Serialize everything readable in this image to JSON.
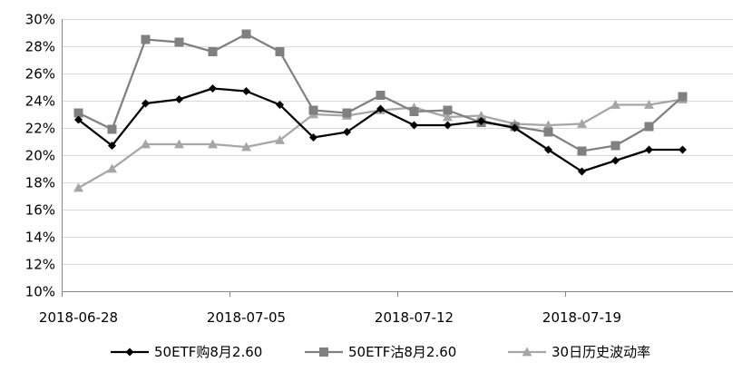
{
  "chart_data": {
    "type": "line",
    "title": "",
    "xlabel": "",
    "ylabel": "",
    "ylim": [
      0.1,
      0.3
    ],
    "yticks": [
      0.1,
      0.12,
      0.14,
      0.16,
      0.18,
      0.2,
      0.22,
      0.24,
      0.26,
      0.28,
      0.3
    ],
    "ytick_labels": [
      "10%",
      "12%",
      "14%",
      "16%",
      "18%",
      "20%",
      "22%",
      "24%",
      "26%",
      "28%",
      "30%"
    ],
    "xtick_labels": [
      "2018-06-28",
      "2018-07-05",
      "2018-07-12",
      "2018-07-19"
    ],
    "xtick_indices": [
      0,
      5,
      10,
      15
    ],
    "x": [
      "2018-06-28",
      "2018-06-29",
      "2018-07-02",
      "2018-07-03",
      "2018-07-04",
      "2018-07-05",
      "2018-07-06",
      "2018-07-09",
      "2018-07-10",
      "2018-07-11",
      "2018-07-12",
      "2018-07-13",
      "2018-07-16",
      "2018-07-17",
      "2018-07-18",
      "2018-07-19",
      "2018-07-20",
      "2018-07-23",
      "2018-07-24",
      "2018-07-25"
    ],
    "grid": true,
    "legend_position": "bottom",
    "series": [
      {
        "name": "50ETF购8月2.60",
        "color": "#000000",
        "marker": "diamond",
        "values": [
          0.226,
          0.207,
          0.238,
          0.241,
          0.249,
          0.247,
          0.237,
          0.213,
          0.217,
          0.234,
          0.222,
          0.222,
          0.225,
          0.22,
          0.204,
          0.188,
          0.196,
          0.204,
          0.204,
          null
        ]
      },
      {
        "name": "50ETF沽8月2.60",
        "color": "#808080",
        "marker": "square",
        "values": [
          0.231,
          0.219,
          0.285,
          0.283,
          0.276,
          0.289,
          0.276,
          0.233,
          0.231,
          0.244,
          0.232,
          0.233,
          0.224,
          0.221,
          0.217,
          0.203,
          0.207,
          0.221,
          0.243,
          null
        ]
      },
      {
        "name": "30日历史波动率",
        "color": "#a6a6a6",
        "marker": "triangle",
        "values": [
          0.176,
          0.19,
          0.208,
          0.208,
          0.208,
          0.206,
          0.211,
          0.23,
          0.229,
          0.233,
          0.235,
          0.228,
          0.229,
          0.223,
          0.222,
          0.223,
          0.237,
          0.237,
          0.241,
          null
        ]
      }
    ]
  }
}
